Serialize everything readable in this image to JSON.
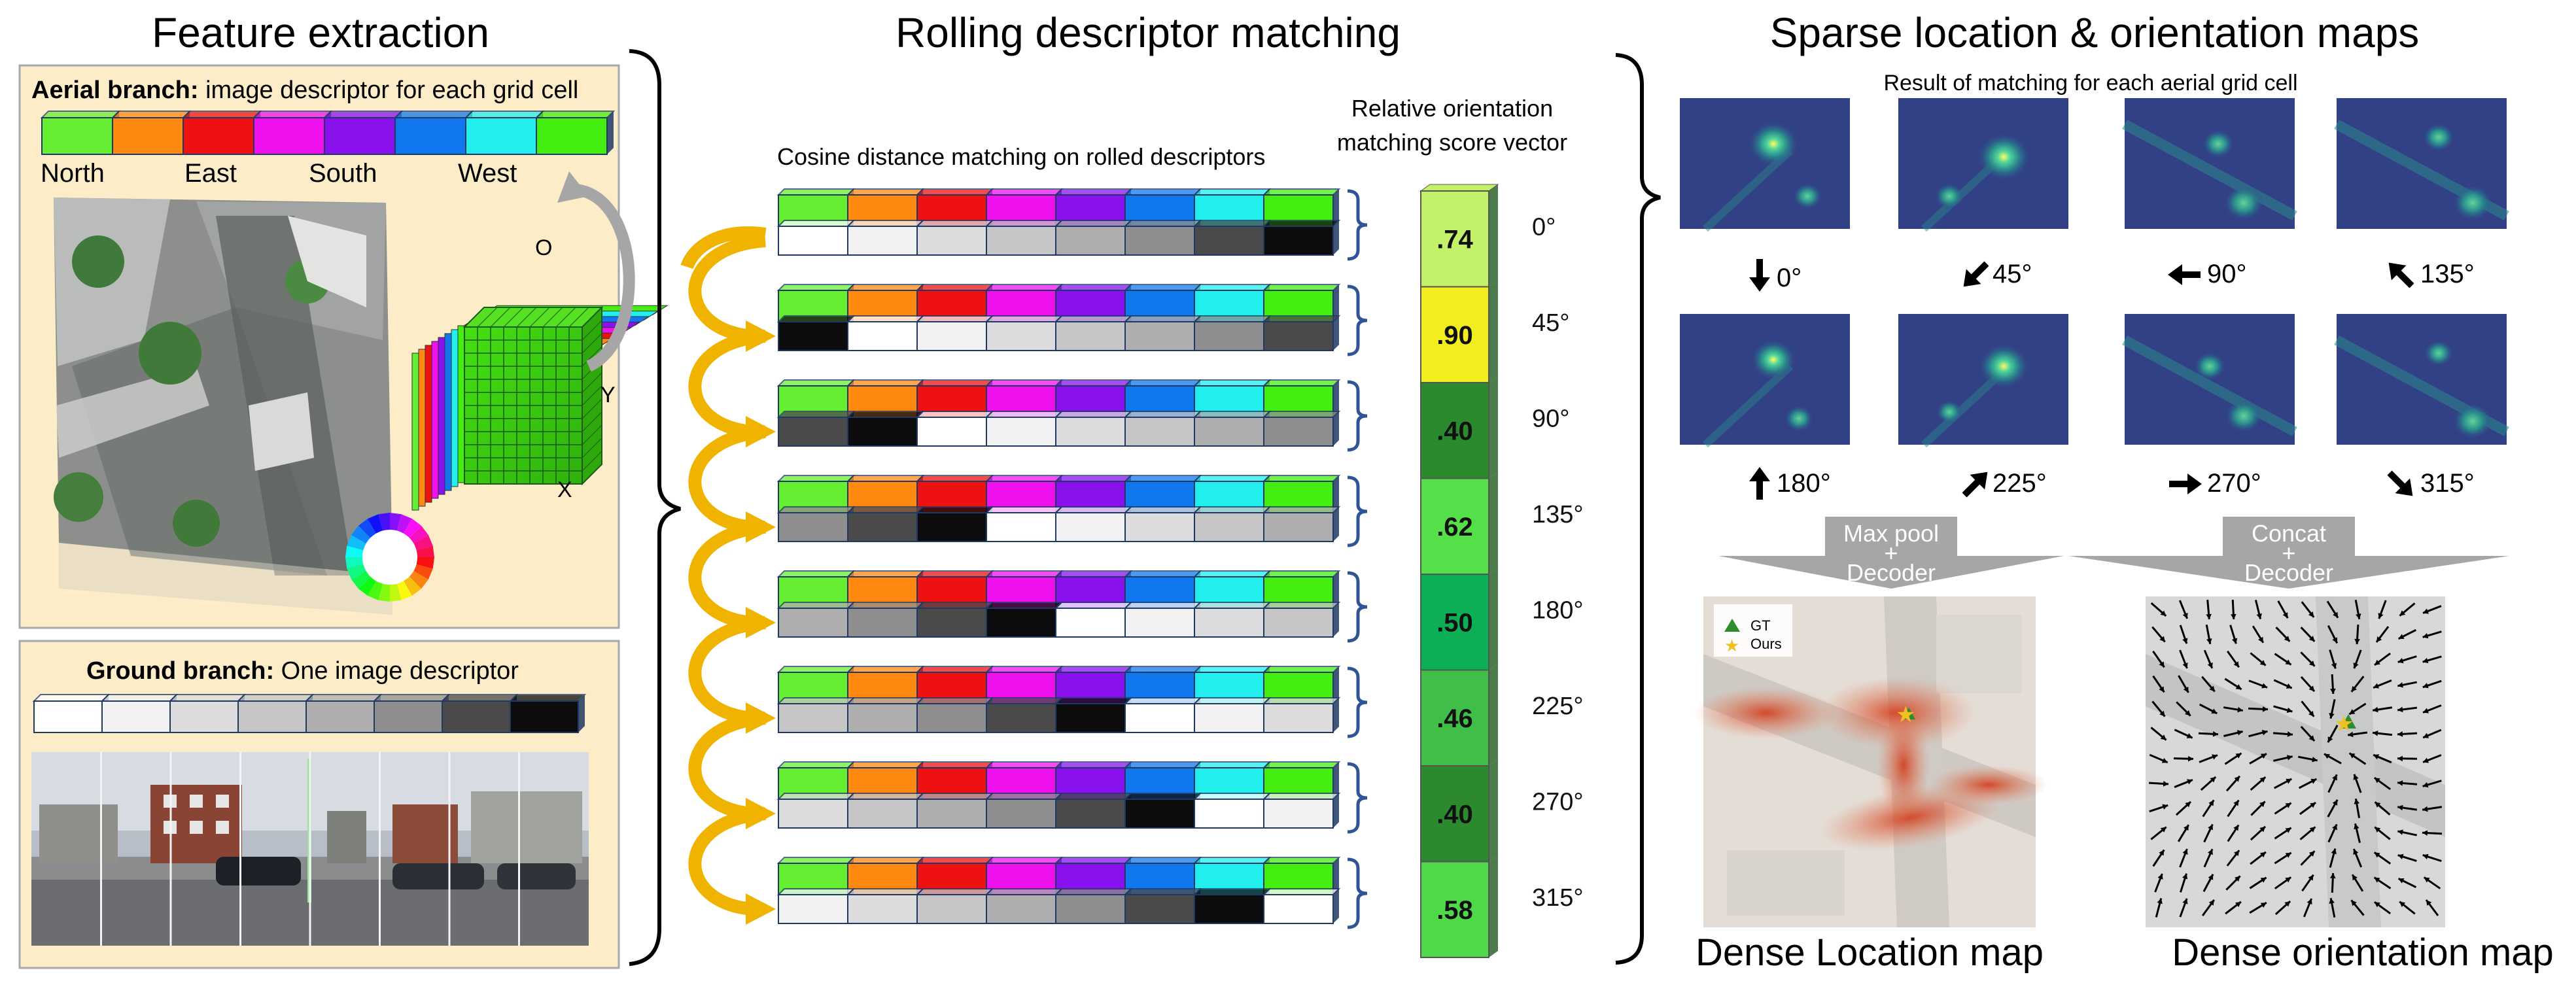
{
  "colors": {
    "north": "#66ee33",
    "ne": "#ff8811",
    "east": "#ee1111",
    "se": "#ee11ee",
    "south": "#8811ee",
    "sw": "#1177ee",
    "west": "#22eeee",
    "nw": "#44ee11",
    "panel_bg": "#fdecc8",
    "panel_border": "#a8a8a8",
    "gold_arrow": "#f0b400",
    "bracket": "#2f5597",
    "gray_arrow": "#a6a6a6",
    "gray_shades": [
      "#ffffff",
      "#f2f2f2",
      "#dcdcdc",
      "#c6c6c6",
      "#aeaeae",
      "#8e8e8e",
      "#4a4a4a",
      "#0c0c0c"
    ]
  },
  "feature": {
    "title": "Feature extraction",
    "aerial": {
      "heading_bold": "Aerial branch:",
      "heading_rest": " image descriptor for each grid cell",
      "dir_labels": [
        "North",
        "East",
        "South",
        "West"
      ],
      "axis_labels": [
        "O",
        "Y",
        "X"
      ]
    },
    "ground": {
      "heading_bold": "Ground branch:",
      "heading_rest": " One image descriptor"
    }
  },
  "rolling": {
    "title": "Rolling descriptor matching",
    "subtitle": "Cosine distance matching on rolled descriptors",
    "vector_title_1": "Relative orientation",
    "vector_title_2": "matching score vector",
    "scores": [
      ".74",
      ".90",
      ".40",
      ".62",
      ".50",
      ".46",
      ".40",
      ".58"
    ],
    "score_colors": [
      "#c3f26a",
      "#f2ee1e",
      "#2b8a2e",
      "#55e04a",
      "#0cae56",
      "#3fbe48",
      "#2b8a2e",
      "#4fd94a"
    ],
    "angles": [
      "0°",
      "45°",
      "90°",
      "135°",
      "180°",
      "225°",
      "270°",
      "315°"
    ]
  },
  "sparse": {
    "title": "Sparse location & orientation maps",
    "subtitle": "Result of matching for each aerial grid cell",
    "angle_labels": [
      "0°",
      "45°",
      "90°",
      "135°",
      "180°",
      "225°",
      "270°",
      "315°"
    ],
    "maxpool_1": "Max pool",
    "maxpool_2": "+",
    "maxpool_3": "Decoder",
    "concat_1": "Concat",
    "concat_2": "+",
    "concat_3": "Decoder",
    "legend_gt": "GT",
    "legend_ours": "Ours",
    "caption_location": "Dense Location map",
    "caption_orientation": "Dense orientation map"
  }
}
